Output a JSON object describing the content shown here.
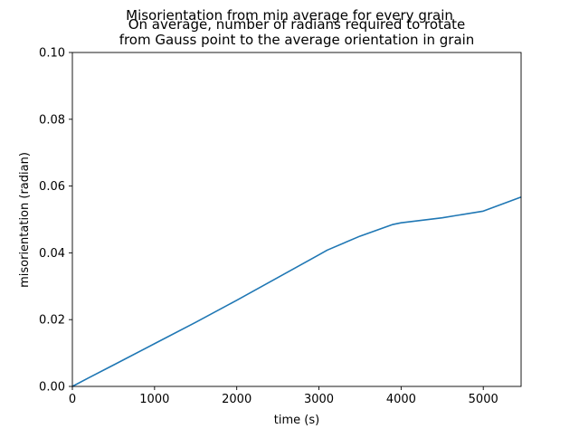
{
  "chart_data": {
    "type": "line",
    "suptitle": "Misorientation from min average for every grain",
    "title_lines": [
      "On average, number of radians required to rotate",
      "from Gauss point to the average orientation in grain"
    ],
    "xlabel": "time (s)",
    "ylabel": "misorientation (radian)",
    "xlim": [
      0,
      5460
    ],
    "ylim": [
      0,
      0.1
    ],
    "xticks": [
      0,
      1000,
      2000,
      3000,
      4000,
      5000
    ],
    "xtick_labels": [
      "0",
      "1000",
      "2000",
      "3000",
      "4000",
      "5000"
    ],
    "yticks": [
      0,
      0.02,
      0.04,
      0.06,
      0.08,
      0.1
    ],
    "ytick_labels": [
      "0.00",
      "0.02",
      "0.04",
      "0.06",
      "0.08",
      "0.10"
    ],
    "grid": false,
    "line_color": "#1f77b4",
    "series": [
      {
        "x": [
          0,
          200,
          500,
          1000,
          1500,
          2000,
          2500,
          3000,
          3100,
          3500,
          3900,
          4000,
          4500,
          5000,
          5460
        ],
        "y": [
          0,
          0.0026,
          0.0064,
          0.0128,
          0.0192,
          0.0258,
          0.0326,
          0.0394,
          0.0408,
          0.045,
          0.0485,
          0.049,
          0.0505,
          0.0525,
          0.0567
        ]
      }
    ]
  }
}
